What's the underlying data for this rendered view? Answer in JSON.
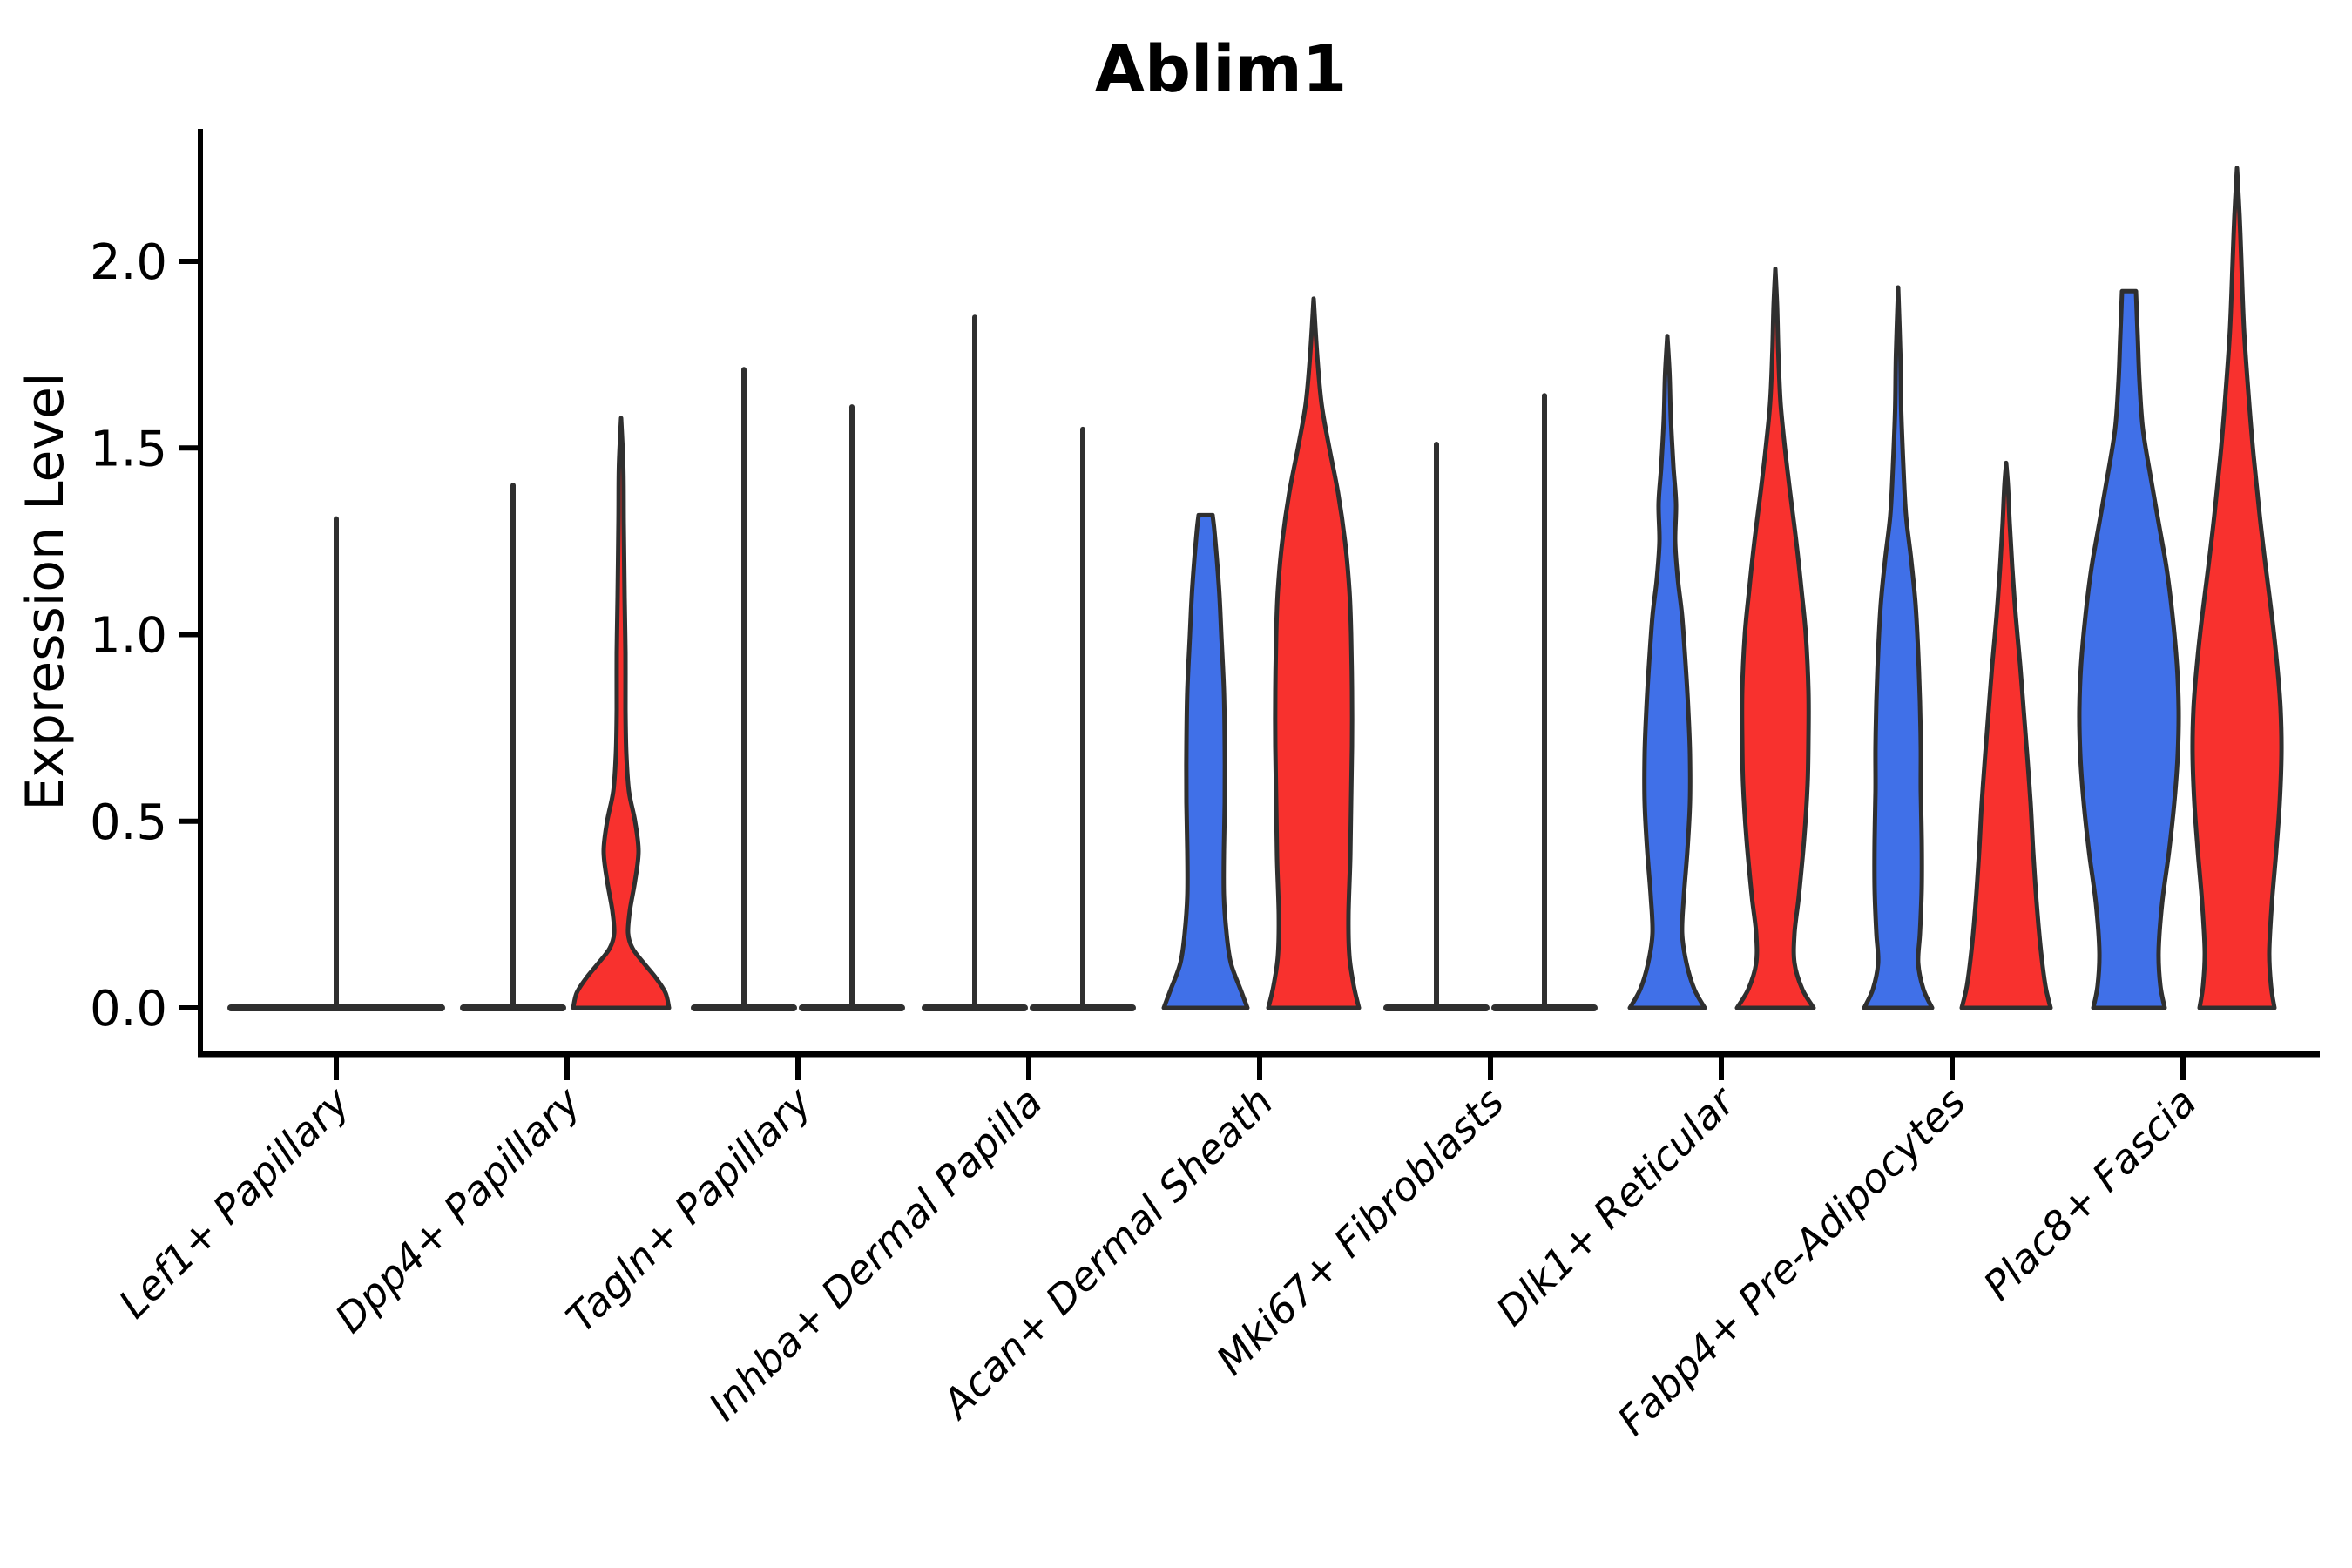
{
  "chart_data": {
    "type": "violin",
    "title": "Ablim1",
    "ylabel": "Expression Level",
    "xlabel": "",
    "yticks": [
      "0.0",
      "0.5",
      "1.0",
      "1.5",
      "2.0"
    ],
    "ytick_values": [
      0.0,
      0.5,
      1.0,
      1.5,
      2.0
    ],
    "ylim": [
      -0.12,
      2.36
    ],
    "grid": false,
    "legend": "none",
    "x_tick_rotation": 45,
    "colors": {
      "group1": "#4070E8",
      "group2": "#F8312E",
      "outline": "#2F2F2F",
      "axis": "#000000"
    },
    "categories": [
      "Lef1+ Papillary",
      "Dpp4+ Papillary",
      "Tagln+ Papillary",
      "Inhba+ Dermal Papilla",
      "Acan+ Dermal Sheath",
      "Mki67+ Fibroblasts",
      "Dlk1+ Reticular",
      "Fabp4+ Pre-Adipocytes",
      "Plac8+ Fascia"
    ],
    "violins": [
      {
        "category": "Lef1+ Papillary",
        "items": [
          {
            "group": "g1",
            "kind": "flat",
            "position": "center",
            "max": 1.31
          }
        ]
      },
      {
        "category": "Dpp4+ Papillary",
        "items": [
          {
            "group": "g1",
            "kind": "flat",
            "position": "left",
            "max": 1.4
          },
          {
            "group": "g2",
            "kind": "violin",
            "position": "right",
            "max": 1.58,
            "tip": "pointed",
            "profile": [
              [
                0,
                55
              ],
              [
                0.04,
                51
              ],
              [
                0.08,
                40
              ],
              [
                0.12,
                26
              ],
              [
                0.16,
                13
              ],
              [
                0.2,
                8
              ],
              [
                0.26,
                10
              ],
              [
                0.34,
                16
              ],
              [
                0.42,
                20
              ],
              [
                0.5,
                16
              ],
              [
                0.58,
                9
              ],
              [
                0.68,
                6
              ],
              [
                0.8,
                5
              ],
              [
                0.95,
                5
              ],
              [
                1.1,
                4
              ],
              [
                1.3,
                3
              ],
              [
                1.45,
                2.5
              ],
              [
                1.58,
                1
              ]
            ]
          }
        ]
      },
      {
        "category": "Tagln+ Papillary",
        "items": [
          {
            "group": "g1",
            "kind": "flat",
            "position": "left",
            "max": 1.71
          },
          {
            "group": "g2",
            "kind": "flat",
            "position": "right",
            "max": 1.61
          }
        ]
      },
      {
        "category": "Inhba+ Dermal Papilla",
        "items": [
          {
            "group": "g1",
            "kind": "flat",
            "position": "left",
            "max": 1.85
          },
          {
            "group": "g2",
            "kind": "flat",
            "position": "right",
            "max": 1.55
          }
        ]
      },
      {
        "category": "Acan+ Dermal Sheath",
        "items": [
          {
            "group": "g1",
            "kind": "violin",
            "position": "left",
            "max": 1.32,
            "tip": "blunt",
            "profile": [
              [
                0,
                48
              ],
              [
                0.05,
                40
              ],
              [
                0.12,
                29
              ],
              [
                0.2,
                24
              ],
              [
                0.3,
                21
              ],
              [
                0.42,
                21
              ],
              [
                0.55,
                22
              ],
              [
                0.7,
                22
              ],
              [
                0.85,
                21
              ],
              [
                1.0,
                18
              ],
              [
                1.1,
                16
              ],
              [
                1.2,
                13
              ],
              [
                1.28,
                10
              ],
              [
                1.32,
                8
              ]
            ]
          },
          {
            "group": "g2",
            "kind": "violin",
            "position": "right",
            "max": 1.9,
            "tip": "pointed",
            "profile": [
              [
                0,
                52
              ],
              [
                0.06,
                46
              ],
              [
                0.14,
                41
              ],
              [
                0.25,
                40
              ],
              [
                0.4,
                42
              ],
              [
                0.55,
                43
              ],
              [
                0.7,
                44
              ],
              [
                0.85,
                44
              ],
              [
                1.0,
                43
              ],
              [
                1.12,
                41
              ],
              [
                1.25,
                36
              ],
              [
                1.38,
                28
              ],
              [
                1.5,
                18
              ],
              [
                1.62,
                9
              ],
              [
                1.75,
                4
              ],
              [
                1.9,
                1
              ]
            ]
          }
        ]
      },
      {
        "category": "Mki67+ Fibroblasts",
        "items": [
          {
            "group": "g1",
            "kind": "flat",
            "position": "left",
            "max": 1.51
          },
          {
            "group": "g2",
            "kind": "flat",
            "position": "right",
            "max": 1.64
          }
        ]
      },
      {
        "category": "Dlk1+ Reticular",
        "items": [
          {
            "group": "g1",
            "kind": "violin",
            "position": "left",
            "max": 1.8,
            "tip": "pointed",
            "profile": [
              [
                0,
                43
              ],
              [
                0.05,
                31
              ],
              [
                0.12,
                22
              ],
              [
                0.2,
                17
              ],
              [
                0.3,
                19
              ],
              [
                0.42,
                23
              ],
              [
                0.55,
                26
              ],
              [
                0.68,
                26
              ],
              [
                0.8,
                24
              ],
              [
                0.92,
                21
              ],
              [
                1.05,
                17
              ],
              [
                1.15,
                12
              ],
              [
                1.25,
                9
              ],
              [
                1.35,
                10
              ],
              [
                1.45,
                7
              ],
              [
                1.58,
                4
              ],
              [
                1.7,
                2.5
              ],
              [
                1.8,
                1
              ]
            ]
          },
          {
            "group": "g2",
            "kind": "violin",
            "position": "right",
            "max": 1.98,
            "tip": "pointed",
            "profile": [
              [
                0,
                44
              ],
              [
                0.05,
                31
              ],
              [
                0.12,
                22
              ],
              [
                0.2,
                22
              ],
              [
                0.3,
                27
              ],
              [
                0.45,
                33
              ],
              [
                0.6,
                37
              ],
              [
                0.72,
                38
              ],
              [
                0.85,
                38
              ],
              [
                1.0,
                35
              ],
              [
                1.12,
                30
              ],
              [
                1.25,
                24
              ],
              [
                1.38,
                17
              ],
              [
                1.5,
                11
              ],
              [
                1.62,
                6
              ],
              [
                1.75,
                3.5
              ],
              [
                1.88,
                2
              ],
              [
                1.98,
                1
              ]
            ]
          }
        ]
      },
      {
        "category": "Fabp4+ Pre-Adipocytes",
        "items": [
          {
            "group": "g1",
            "kind": "violin",
            "position": "left",
            "max": 1.93,
            "tip": "pointed",
            "profile": [
              [
                0,
                39
              ],
              [
                0.05,
                29
              ],
              [
                0.12,
                23
              ],
              [
                0.2,
                25
              ],
              [
                0.32,
                27
              ],
              [
                0.45,
                27
              ],
              [
                0.58,
                26
              ],
              [
                0.7,
                26
              ],
              [
                0.82,
                25
              ],
              [
                0.95,
                23
              ],
              [
                1.08,
                20
              ],
              [
                1.2,
                15
              ],
              [
                1.32,
                9
              ],
              [
                1.45,
                6
              ],
              [
                1.6,
                3.5
              ],
              [
                1.75,
                2.5
              ],
              [
                1.93,
                1
              ]
            ]
          },
          {
            "group": "g2",
            "kind": "violin",
            "position": "right",
            "max": 1.46,
            "tip": "pointed",
            "profile": [
              [
                0,
                51
              ],
              [
                0.06,
                45
              ],
              [
                0.15,
                40
              ],
              [
                0.28,
                35
              ],
              [
                0.42,
                31
              ],
              [
                0.55,
                28
              ],
              [
                0.68,
                24
              ],
              [
                0.8,
                20
              ],
              [
                0.92,
                16
              ],
              [
                1.05,
                11
              ],
              [
                1.18,
                7
              ],
              [
                1.3,
                4
              ],
              [
                1.4,
                2
              ],
              [
                1.46,
                1
              ]
            ]
          }
        ]
      },
      {
        "category": "Plac8+ Fascia",
        "items": [
          {
            "group": "g1",
            "kind": "violin",
            "position": "left",
            "max": 1.92,
            "tip": "blunt",
            "profile": [
              [
                0,
                41
              ],
              [
                0.06,
                36
              ],
              [
                0.15,
                34
              ],
              [
                0.28,
                38
              ],
              [
                0.42,
                46
              ],
              [
                0.55,
                52
              ],
              [
                0.68,
                56
              ],
              [
                0.8,
                57
              ],
              [
                0.92,
                55
              ],
              [
                1.05,
                50
              ],
              [
                1.18,
                43
              ],
              [
                1.3,
                34
              ],
              [
                1.42,
                25
              ],
              [
                1.55,
                16
              ],
              [
                1.68,
                12
              ],
              [
                1.8,
                10
              ],
              [
                1.92,
                8
              ]
            ]
          },
          {
            "group": "g2",
            "kind": "violin",
            "position": "right",
            "max": 2.25,
            "tip": "pointed",
            "profile": [
              [
                0,
                43
              ],
              [
                0.06,
                39
              ],
              [
                0.15,
                37
              ],
              [
                0.28,
                40
              ],
              [
                0.42,
                45
              ],
              [
                0.55,
                49
              ],
              [
                0.68,
                51
              ],
              [
                0.8,
                50
              ],
              [
                0.92,
                46
              ],
              [
                1.05,
                40
              ],
              [
                1.18,
                33
              ],
              [
                1.32,
                26
              ],
              [
                1.48,
                19
              ],
              [
                1.65,
                13
              ],
              [
                1.82,
                8
              ],
              [
                2.0,
                5
              ],
              [
                2.12,
                3
              ],
              [
                2.25,
                1
              ]
            ]
          }
        ]
      }
    ]
  }
}
